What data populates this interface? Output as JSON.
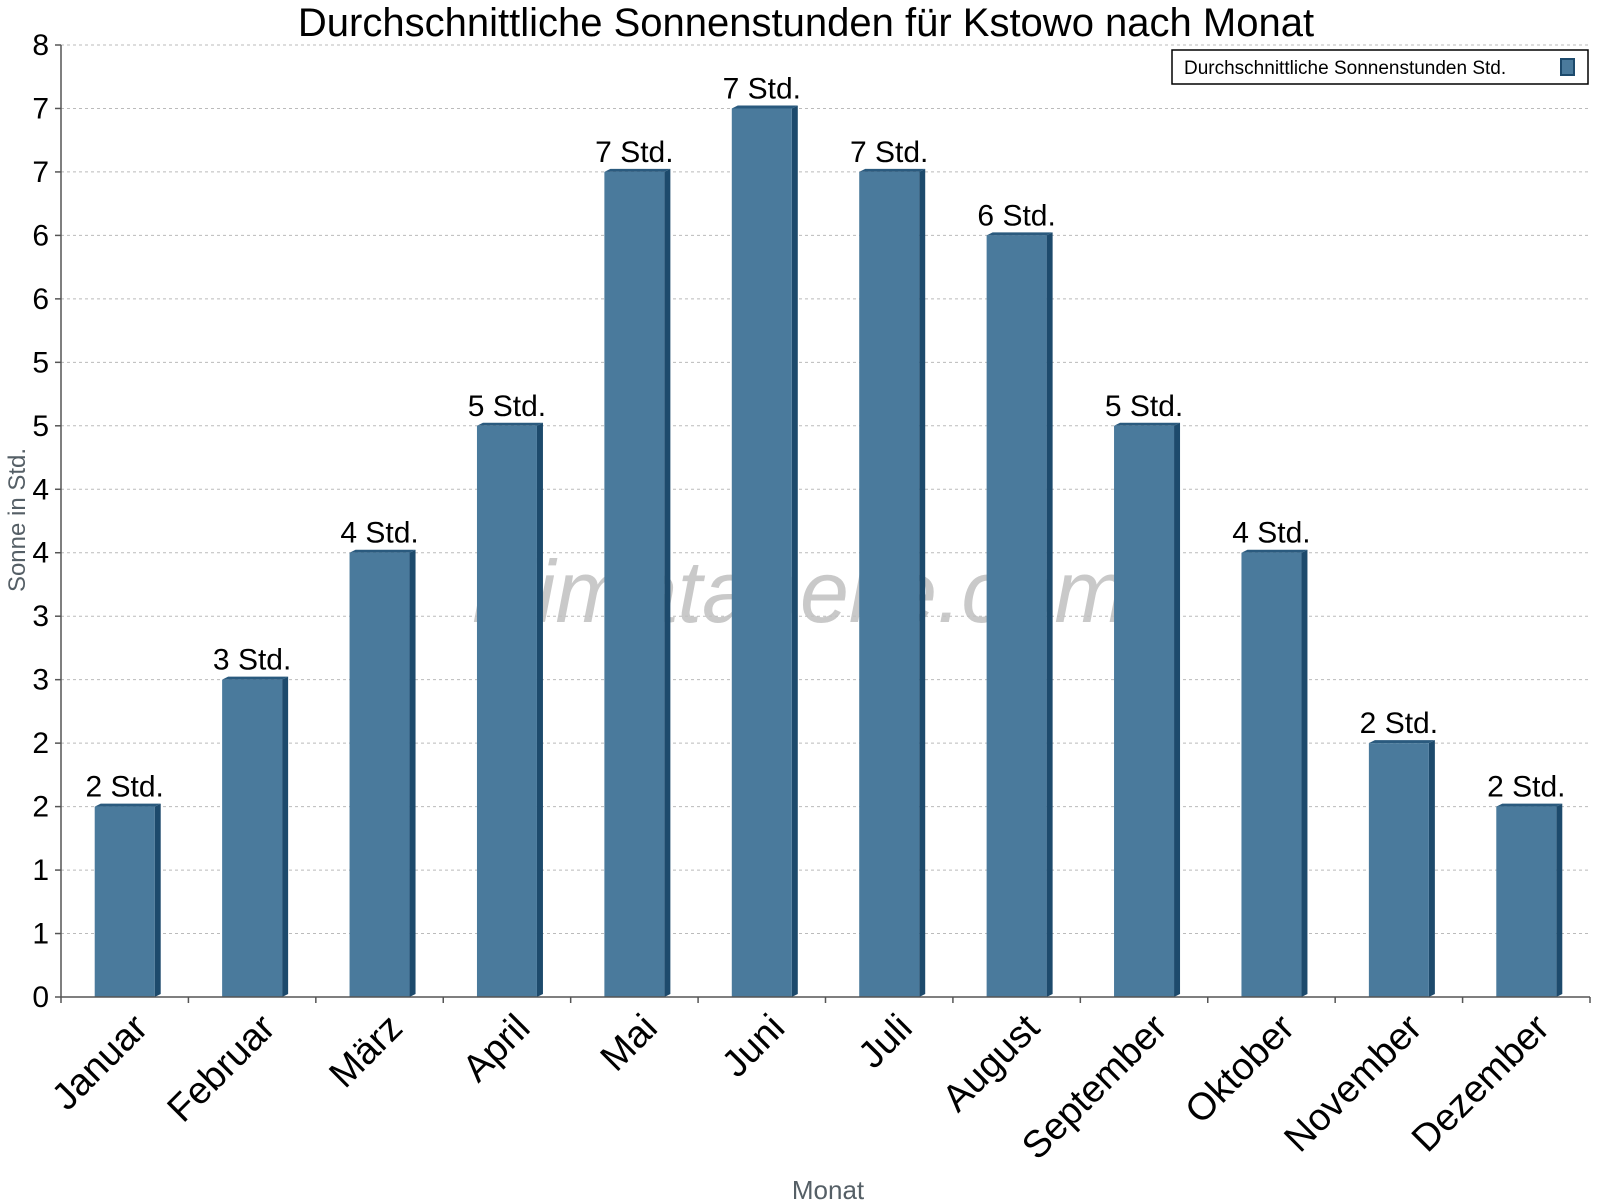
{
  "chart_data": {
    "type": "bar",
    "title": "Durchschnittliche Sonnenstunden für Kstowo nach Monat",
    "xlabel": "Monat",
    "ylabel": "Sonne in Std.",
    "categories": [
      "Januar",
      "Februar",
      "März",
      "April",
      "Mai",
      "Juni",
      "Juli",
      "August",
      "September",
      "Oktober",
      "November",
      "Dezember"
    ],
    "series": [
      {
        "name": "Durchschnittliche Sonnenstunden Std.",
        "values": [
          1.5,
          2.5,
          3.5,
          4.5,
          6.5,
          7.0,
          6.5,
          6.0,
          4.5,
          3.5,
          2.0,
          1.5
        ],
        "data_labels": [
          "2 Std.",
          "3 Std.",
          "4 Std.",
          "5 Std.",
          "7 Std.",
          "7 Std.",
          "7 Std.",
          "6 Std.",
          "5 Std.",
          "4 Std.",
          "2 Std.",
          "2 Std."
        ]
      }
    ],
    "ylim": [
      0,
      7.5
    ],
    "ytick_values": [
      0,
      0.5,
      1,
      1.5,
      2,
      2.5,
      3,
      3.5,
      4,
      4.5,
      5,
      5.5,
      6,
      6.5,
      7,
      7.5
    ],
    "ytick_labels": [
      "0",
      "1",
      "1",
      "2",
      "2",
      "3",
      "3",
      "4",
      "4",
      "5",
      "5",
      "6",
      "6",
      "7",
      "7",
      "8"
    ],
    "grid": true,
    "legend_position": "top-right",
    "watermark": "klimatabelle.com",
    "colors": {
      "bar": "#4a7a9c",
      "bar_side": "#1d4a6c",
      "bar_top": "#2a5a7e",
      "axis": "#555555",
      "grid": "#bbbbbb",
      "text": "#000000",
      "axis_title": "#555f66",
      "watermark": "#bfbfbf"
    }
  }
}
